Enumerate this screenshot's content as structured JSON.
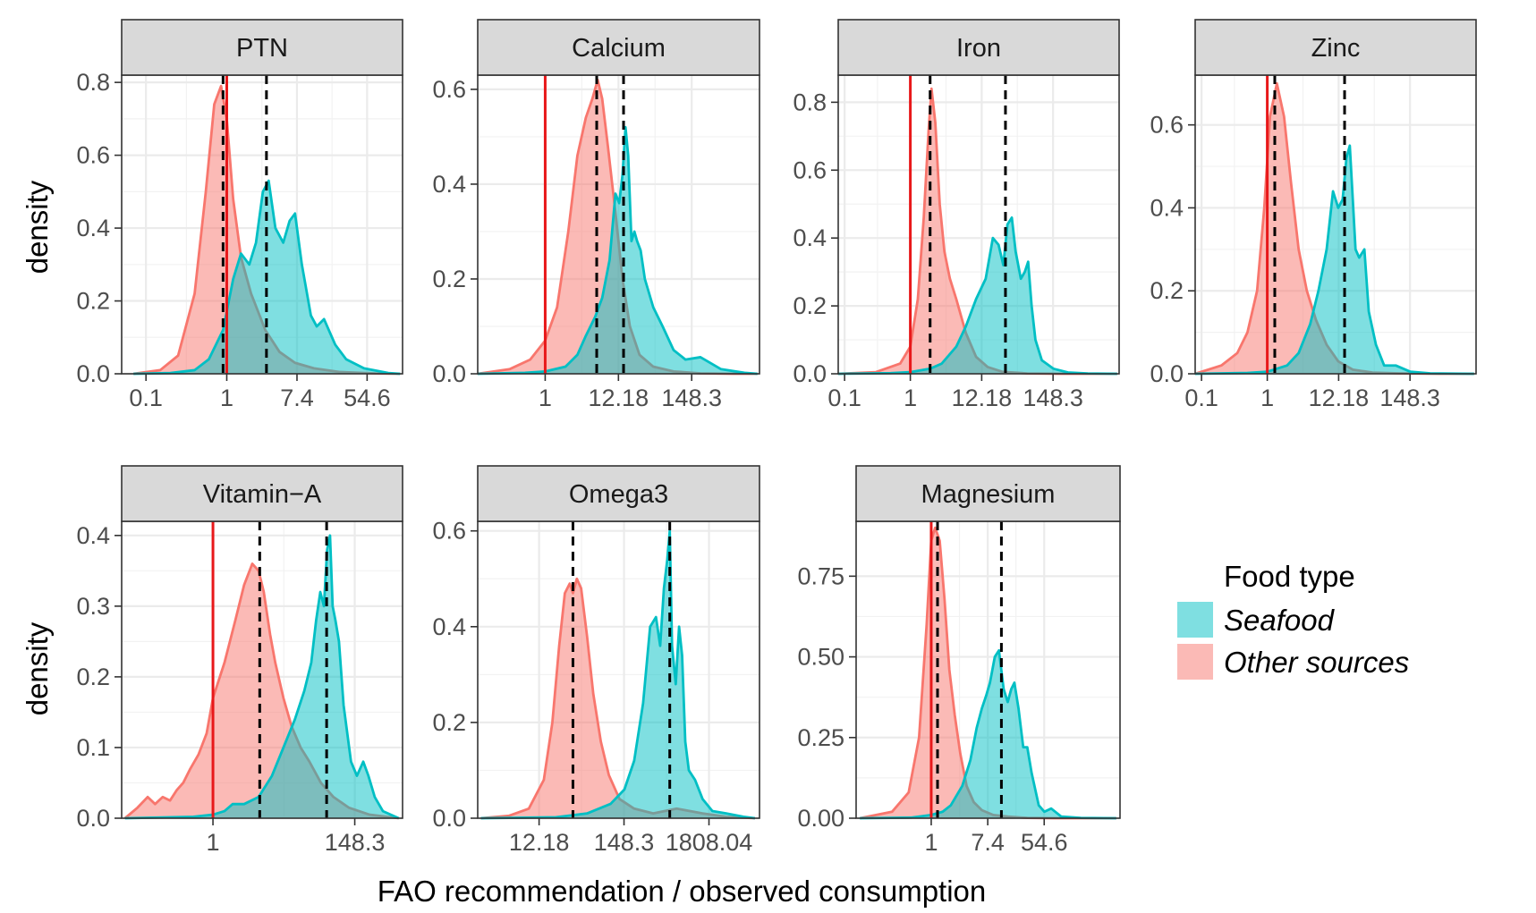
{
  "chart_data": {
    "type": "area",
    "xlabel": "FAO recommendation / observed consumption",
    "ylabel": "density",
    "x_scale": "log",
    "legend": {
      "title": "Food type",
      "placement": "right",
      "entries": [
        {
          "label": "Seafood",
          "color": "#00BFC4"
        },
        {
          "label": "Other sources",
          "color": "#F8766D"
        }
      ]
    },
    "reference_line_color": "#E8181A",
    "mean_line_color": "#000000",
    "panels": [
      {
        "title": "PTN",
        "xlim": [
          0.05,
          150
        ],
        "ylim": [
          0,
          0.82
        ],
        "x_ticks": [
          0.1,
          1,
          7.4,
          54.6
        ],
        "x_tick_labels": [
          "0.1",
          "1",
          "7.4",
          "54.6"
        ],
        "y_ticks": [
          0,
          0.2,
          0.4,
          0.6,
          0.8
        ],
        "y_tick_labels": [
          "0.0",
          "0.2",
          "0.4",
          "0.6",
          "0.8"
        ],
        "reference_line": 1,
        "mean_lines": [
          0.9,
          3.1
        ],
        "series": [
          {
            "name": "Other sources",
            "x": [
              0.07,
              0.15,
              0.25,
              0.4,
              0.55,
              0.7,
              0.85,
              1.0,
              1.2,
              1.5,
              2,
              3,
              4.5,
              7,
              12,
              25,
              70,
              140
            ],
            "y": [
              0,
              0.01,
              0.05,
              0.22,
              0.5,
              0.74,
              0.79,
              0.7,
              0.48,
              0.32,
              0.22,
              0.12,
              0.06,
              0.03,
              0.015,
              0.005,
              0.001,
              0
            ]
          },
          {
            "name": "Seafood",
            "x": [
              0.07,
              0.2,
              0.4,
              0.6,
              0.9,
              1.2,
              1.5,
              1.9,
              2.3,
              2.8,
              3.3,
              4,
              5,
              6,
              7,
              8.5,
              11,
              13,
              16,
              22,
              30,
              50,
              100,
              140
            ],
            "y": [
              0,
              0.002,
              0.01,
              0.04,
              0.12,
              0.26,
              0.33,
              0.3,
              0.36,
              0.5,
              0.53,
              0.4,
              0.36,
              0.42,
              0.44,
              0.3,
              0.16,
              0.13,
              0.15,
              0.08,
              0.04,
              0.015,
              0.002,
              0
            ]
          }
        ]
      },
      {
        "title": "Calcium",
        "xlim": [
          0.1,
          1500
        ],
        "ylim": [
          0,
          0.63
        ],
        "x_ticks": [
          1,
          12.18,
          148.3
        ],
        "x_tick_labels": [
          "1",
          "12.18",
          "148.3"
        ],
        "y_ticks": [
          0,
          0.2,
          0.4,
          0.6
        ],
        "y_tick_labels": [
          "0.0",
          "0.2",
          "0.4",
          "0.6"
        ],
        "reference_line": 1,
        "mean_lines": [
          5.8,
          14.5
        ],
        "series": [
          {
            "name": "Other sources",
            "x": [
              0.1,
              0.3,
              0.6,
              1,
              1.5,
              2.2,
              3,
              4,
              5,
              6,
              7,
              8.5,
              11,
              14,
              18,
              25,
              40,
              80,
              200,
              600,
              1400
            ],
            "y": [
              0,
              0.01,
              0.03,
              0.07,
              0.14,
              0.3,
              0.46,
              0.54,
              0.58,
              0.62,
              0.58,
              0.48,
              0.34,
              0.2,
              0.1,
              0.04,
              0.015,
              0.005,
              0.001,
              0,
              0
            ]
          },
          {
            "name": "Seafood",
            "x": [
              0.1,
              0.5,
              1,
              2,
              3,
              4,
              5.5,
              7,
              9,
              11,
              12.5,
              14,
              15.5,
              17,
              19,
              21,
              23,
              26,
              30,
              40,
              55,
              80,
              120,
              200,
              400,
              900,
              1400
            ],
            "y": [
              0,
              0.002,
              0.005,
              0.015,
              0.04,
              0.08,
              0.12,
              0.16,
              0.24,
              0.38,
              0.36,
              0.42,
              0.52,
              0.46,
              0.28,
              0.3,
              0.28,
              0.26,
              0.2,
              0.14,
              0.1,
              0.05,
              0.03,
              0.035,
              0.01,
              0.002,
              0
            ]
          }
        ]
      },
      {
        "title": "Iron",
        "xlim": [
          0.08,
          1500
        ],
        "ylim": [
          0,
          0.88
        ],
        "x_ticks": [
          0.1,
          1,
          12.18,
          148.3
        ],
        "x_tick_labels": [
          "0.1",
          "1",
          "12.18",
          "148.3"
        ],
        "y_ticks": [
          0,
          0.2,
          0.4,
          0.6,
          0.8
        ],
        "y_tick_labels": [
          "0.0",
          "0.2",
          "0.4",
          "0.6",
          "0.8"
        ],
        "reference_line": 1,
        "mean_lines": [
          2.0,
          28
        ],
        "series": [
          {
            "name": "Other sources",
            "x": [
              0.08,
              0.3,
              0.7,
              1,
              1.3,
              1.6,
              1.9,
              2.1,
              2.4,
              2.8,
              3.3,
              4,
              5,
              7,
              10,
              15,
              25,
              60,
              200,
              1400
            ],
            "y": [
              0,
              0.005,
              0.03,
              0.08,
              0.22,
              0.46,
              0.72,
              0.84,
              0.74,
              0.5,
              0.36,
              0.28,
              0.22,
              0.12,
              0.05,
              0.02,
              0.006,
              0.001,
              0,
              0
            ]
          },
          {
            "name": "Seafood",
            "x": [
              0.08,
              0.5,
              1,
              2,
              3,
              5,
              7,
              10,
              14,
              18,
              22,
              26,
              30,
              35,
              40,
              48,
              55,
              62,
              70,
              80,
              100,
              150,
              250,
              500,
              1400
            ],
            "y": [
              0,
              0.002,
              0.005,
              0.015,
              0.03,
              0.08,
              0.14,
              0.22,
              0.28,
              0.4,
              0.38,
              0.32,
              0.44,
              0.46,
              0.36,
              0.28,
              0.3,
              0.33,
              0.2,
              0.1,
              0.04,
              0.015,
              0.004,
              0.001,
              0
            ]
          }
        ]
      },
      {
        "title": "Zinc",
        "xlim": [
          0.08,
          1500
        ],
        "ylim": [
          0,
          0.72
        ],
        "x_ticks": [
          0.1,
          1,
          12.18,
          148.3
        ],
        "x_tick_labels": [
          "0.1",
          "1",
          "12.18",
          "148.3"
        ],
        "y_ticks": [
          0,
          0.2,
          0.4,
          0.6
        ],
        "y_tick_labels": [
          "0.0",
          "0.2",
          "0.4",
          "0.6"
        ],
        "reference_line": 1,
        "mean_lines": [
          1.3,
          15
        ],
        "series": [
          {
            "name": "Other sources",
            "x": [
              0.08,
              0.2,
              0.35,
              0.5,
              0.7,
              0.9,
              1.1,
              1.4,
              1.8,
              2.3,
              3,
              4,
              5.5,
              8,
              12,
              20,
              40,
              100,
              400,
              1400
            ],
            "y": [
              0,
              0.02,
              0.05,
              0.1,
              0.2,
              0.4,
              0.62,
              0.7,
              0.62,
              0.46,
              0.3,
              0.2,
              0.13,
              0.07,
              0.03,
              0.01,
              0.003,
              0.001,
              0,
              0
            ]
          },
          {
            "name": "Seafood",
            "x": [
              0.08,
              0.5,
              1,
              2,
              3,
              4.5,
              6,
              8,
              10,
              12,
              14,
              16,
              18,
              20,
              22,
              25,
              30,
              35,
              45,
              60,
              90,
              150,
              300,
              1400
            ],
            "y": [
              0,
              0.002,
              0.005,
              0.02,
              0.05,
              0.12,
              0.2,
              0.3,
              0.44,
              0.4,
              0.42,
              0.52,
              0.55,
              0.42,
              0.3,
              0.28,
              0.3,
              0.15,
              0.07,
              0.02,
              0.02,
              0.005,
              0.001,
              0
            ]
          }
        ]
      },
      {
        "title": "Vitamin−A",
        "xlim": [
          0.04,
          800
        ],
        "ylim": [
          0,
          0.42
        ],
        "x_ticks": [
          1,
          148.3
        ],
        "x_tick_labels": [
          "1",
          "148.3"
        ],
        "y_ticks": [
          0,
          0.1,
          0.2,
          0.3,
          0.4
        ],
        "y_tick_labels": [
          "0.0",
          "0.1",
          "0.2",
          "0.3",
          "0.4"
        ],
        "reference_line": 1,
        "mean_lines": [
          5.2,
          55
        ],
        "series": [
          {
            "name": "Other sources",
            "x": [
              0.045,
              0.07,
              0.1,
              0.13,
              0.17,
              0.22,
              0.28,
              0.35,
              0.45,
              0.6,
              0.8,
              1,
              1.5,
              2.2,
              3,
              4,
              5,
              6,
              7.5,
              9,
              12,
              16,
              22,
              30,
              45,
              70,
              120,
              250,
              700
            ],
            "y": [
              0,
              0.015,
              0.03,
              0.02,
              0.03,
              0.025,
              0.04,
              0.05,
              0.07,
              0.09,
              0.12,
              0.17,
              0.22,
              0.28,
              0.33,
              0.36,
              0.35,
              0.32,
              0.26,
              0.22,
              0.17,
              0.13,
              0.1,
              0.08,
              0.05,
              0.03,
              0.015,
              0.005,
              0
            ]
          },
          {
            "name": "Seafood",
            "x": [
              0.045,
              0.5,
              1,
              1.5,
              2,
              3,
              5,
              8,
              12,
              18,
              25,
              32,
              38,
              44,
              50,
              56,
              62,
              68,
              75,
              85,
              100,
              130,
              160,
              200,
              240,
              300,
              400,
              700
            ],
            "y": [
              0,
              0.002,
              0.005,
              0.01,
              0.02,
              0.02,
              0.03,
              0.06,
              0.1,
              0.14,
              0.18,
              0.22,
              0.28,
              0.32,
              0.3,
              0.38,
              0.4,
              0.3,
              0.28,
              0.25,
              0.16,
              0.08,
              0.06,
              0.08,
              0.06,
              0.03,
              0.01,
              0
            ]
          }
        ]
      },
      {
        "title": "Omega3",
        "xlim": [
          2,
          8000
        ],
        "ylim": [
          0,
          0.62
        ],
        "x_ticks": [
          12.18,
          148.3,
          1808.04
        ],
        "x_tick_labels": [
          "12.18",
          "148.3",
          "1808.04"
        ],
        "y_ticks": [
          0,
          0.2,
          0.4,
          0.6
        ],
        "y_tick_labels": [
          "0.0",
          "0.2",
          "0.4",
          "0.6"
        ],
        "reference_line": null,
        "mean_lines": [
          33,
          570
        ],
        "series": [
          {
            "name": "Other sources",
            "x": [
              2.2,
              5,
              9,
              14,
              18,
              22,
              26,
              30,
              33,
              37,
              42,
              50,
              60,
              75,
              95,
              130,
              200,
              350,
              700,
              1500,
              3000,
              7000
            ],
            "y": [
              0,
              0.005,
              0.02,
              0.08,
              0.2,
              0.36,
              0.47,
              0.49,
              0.47,
              0.5,
              0.48,
              0.38,
              0.26,
              0.16,
              0.09,
              0.04,
              0.02,
              0.01,
              0.02,
              0.01,
              0.003,
              0
            ]
          },
          {
            "name": "Seafood",
            "x": [
              2.2,
              20,
              50,
              100,
              150,
              200,
              260,
              320,
              380,
              430,
              480,
              530,
              570,
              610,
              680,
              750,
              820,
              900,
              1000,
              1200,
              1500,
              2000,
              3000,
              5000,
              7000
            ],
            "y": [
              0,
              0.002,
              0.01,
              0.03,
              0.06,
              0.12,
              0.24,
              0.4,
              0.42,
              0.36,
              0.48,
              0.54,
              0.6,
              0.36,
              0.28,
              0.4,
              0.34,
              0.16,
              0.1,
              0.08,
              0.04,
              0.015,
              0.01,
              0.003,
              0
            ]
          }
        ]
      },
      {
        "title": "Magnesium",
        "xlim": [
          0.07,
          800
        ],
        "ylim": [
          0,
          0.92
        ],
        "x_ticks": [
          1,
          7.4,
          54.6
        ],
        "x_tick_labels": [
          "1",
          "7.4",
          "54.6"
        ],
        "y_ticks": [
          0,
          0.25,
          0.5,
          0.75
        ],
        "y_tick_labels": [
          "0.00",
          "0.25",
          "0.50",
          "0.75"
        ],
        "reference_line": 1,
        "mean_lines": [
          1.25,
          12
        ],
        "series": [
          {
            "name": "Other sources",
            "x": [
              0.08,
              0.25,
              0.45,
              0.65,
              0.85,
              1.0,
              1.15,
              1.35,
              1.6,
              1.9,
              2.3,
              2.8,
              3.5,
              4.5,
              6,
              9,
              15,
              30,
              80,
              300,
              700
            ],
            "y": [
              0,
              0.02,
              0.08,
              0.25,
              0.6,
              0.86,
              0.9,
              0.86,
              0.68,
              0.46,
              0.32,
              0.2,
              0.1,
              0.05,
              0.025,
              0.01,
              0.005,
              0.001,
              0,
              0,
              0
            ]
          },
          {
            "name": "Seafood",
            "x": [
              0.08,
              0.5,
              1,
              1.5,
              2,
              3,
              4,
              5,
              6,
              7,
              8,
              9.5,
              11,
              13,
              15,
              17,
              19,
              22,
              26,
              30,
              35,
              45,
              55,
              70,
              100,
              200,
              700
            ],
            "y": [
              0,
              0.002,
              0.01,
              0.02,
              0.04,
              0.1,
              0.18,
              0.28,
              0.34,
              0.38,
              0.42,
              0.5,
              0.52,
              0.4,
              0.36,
              0.4,
              0.42,
              0.34,
              0.22,
              0.22,
              0.14,
              0.04,
              0.02,
              0.03,
              0.005,
              0.001,
              0
            ]
          }
        ]
      }
    ]
  }
}
